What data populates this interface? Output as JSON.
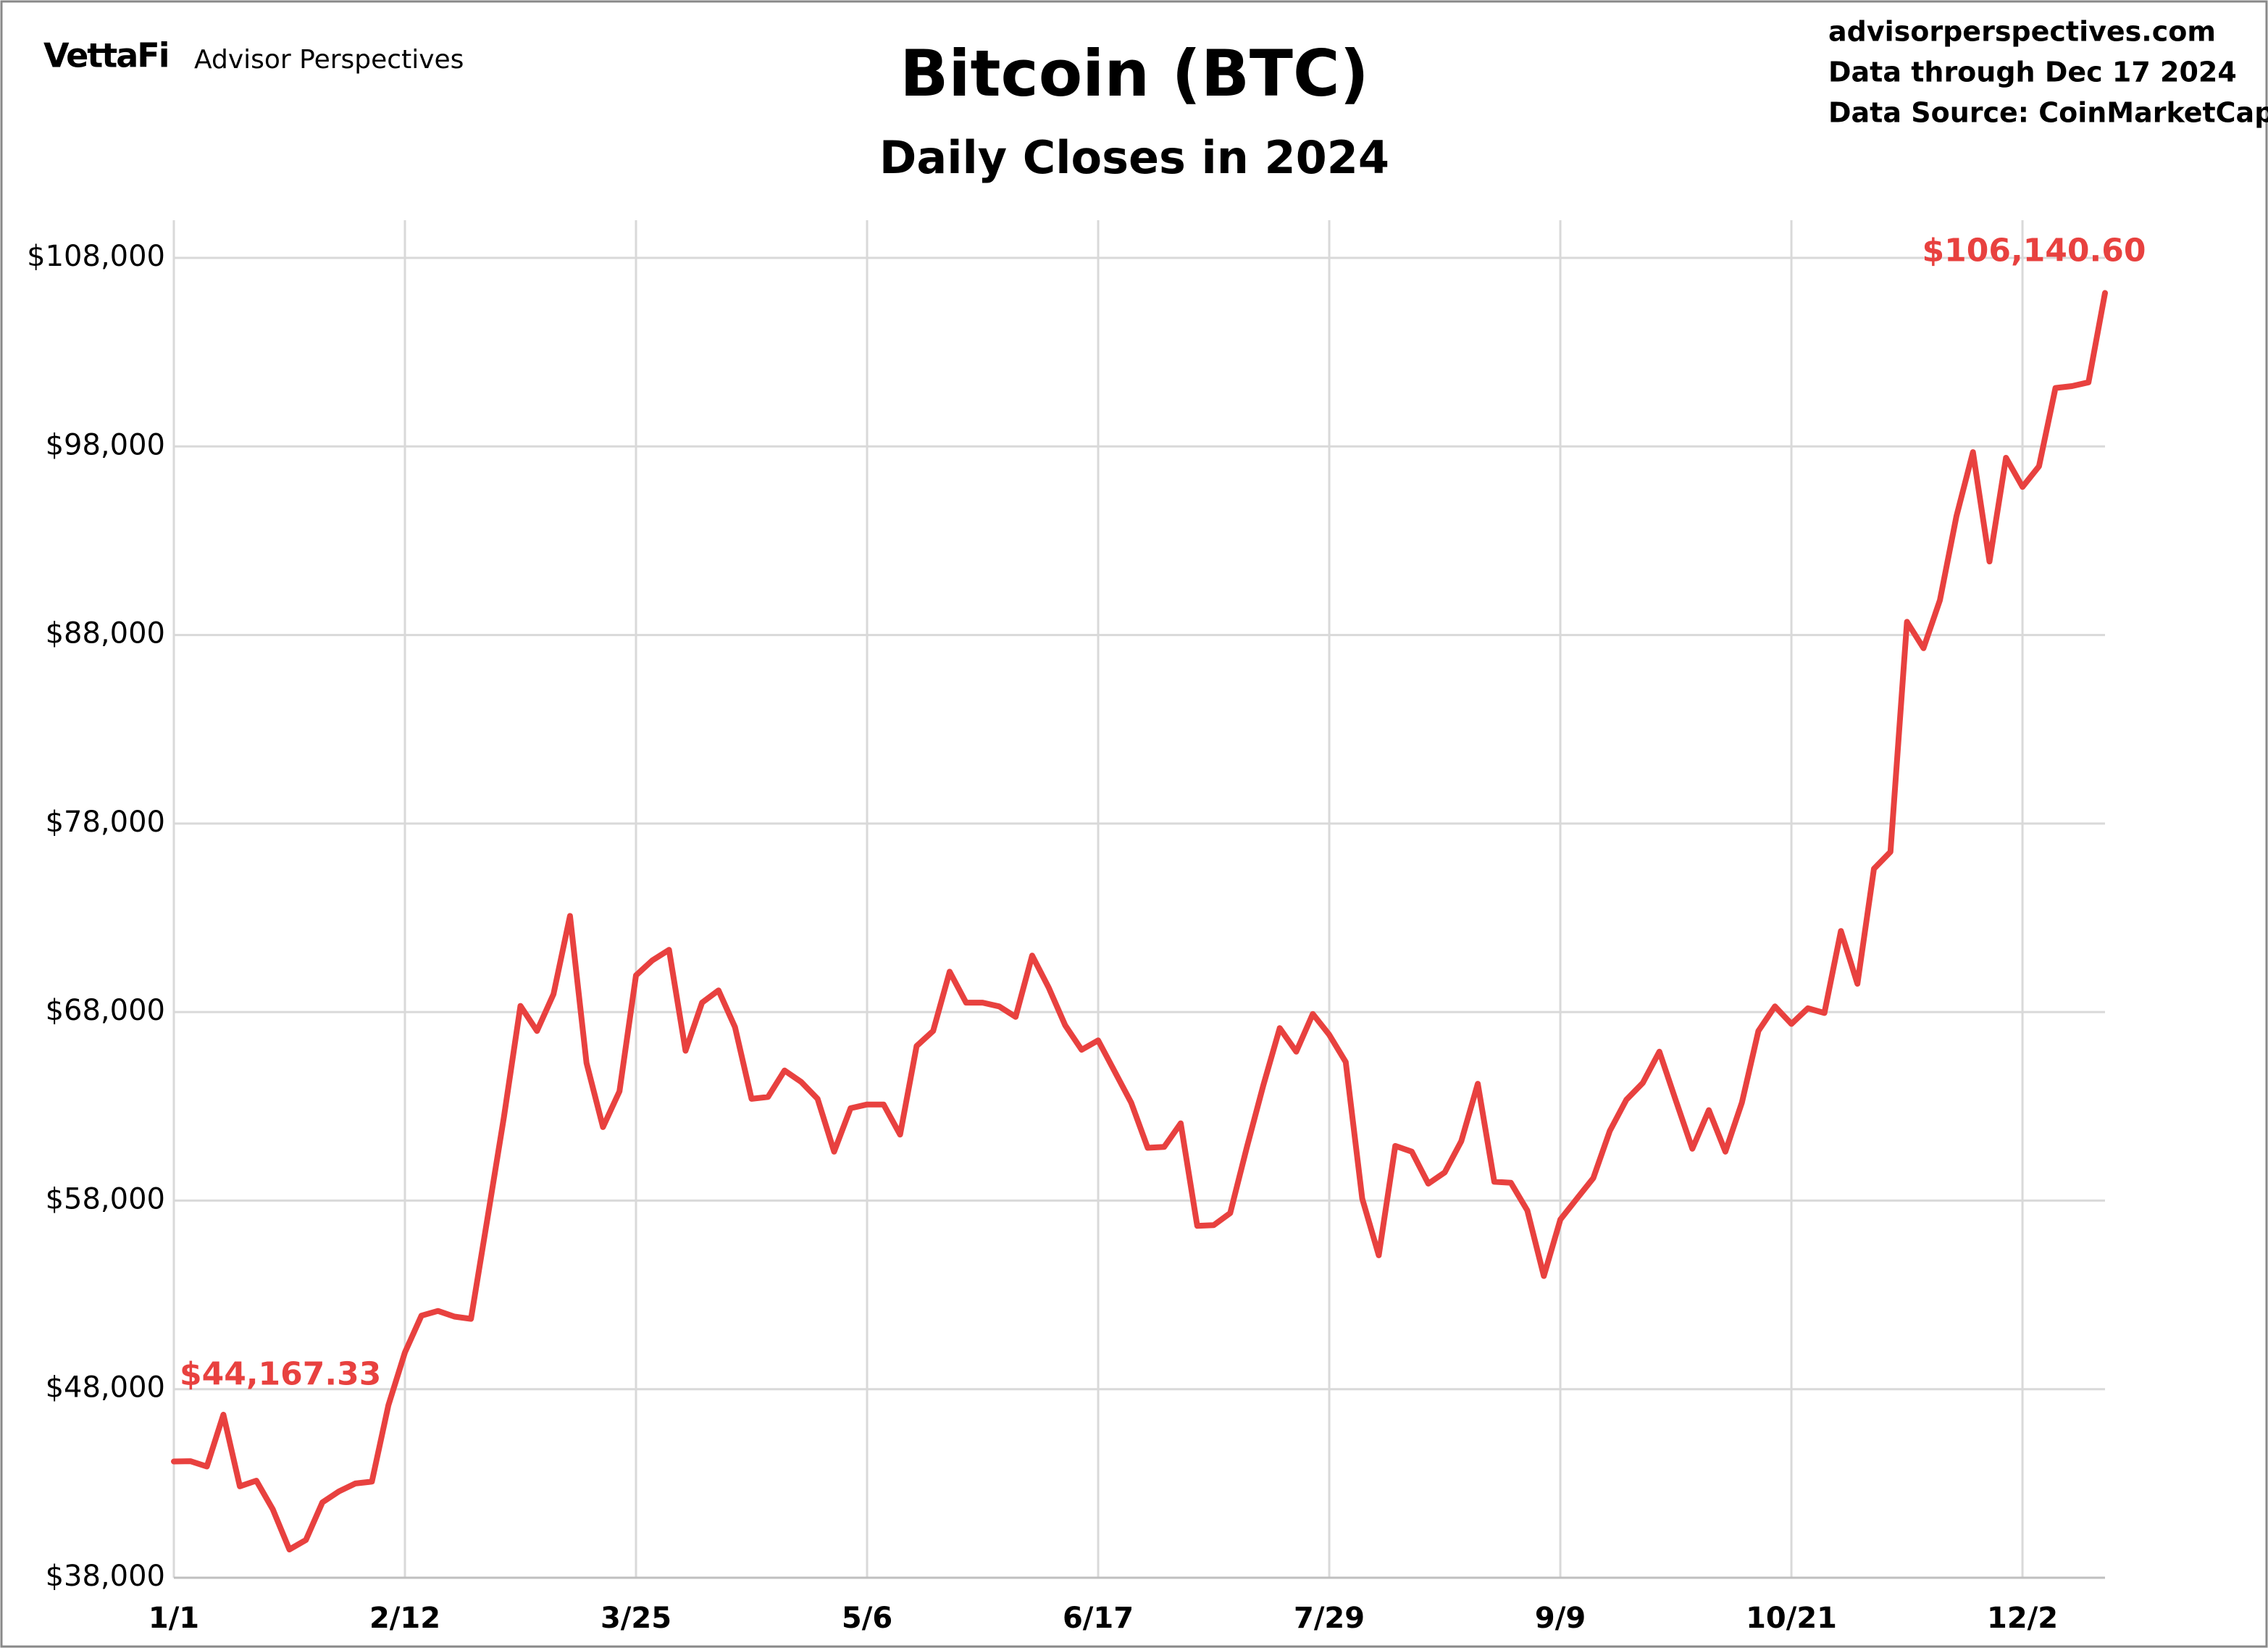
{
  "chart_data": {
    "type": "line",
    "logo": "VettaFi",
    "brand": "Advisor Perspectives",
    "title": "Bitcoin (BTC)",
    "subtitle": "Daily Closes in 2024",
    "source_lines": [
      "advisorperspectives.com",
      "Data through Dec 17 2024",
      "Data Source: CoinMarketCap"
    ],
    "categories": [
      "1/1",
      null,
      null,
      null,
      null,
      null,
      null,
      null,
      null,
      null,
      null,
      null,
      null,
      null,
      "2/12",
      null,
      null,
      null,
      null,
      null,
      null,
      null,
      null,
      null,
      null,
      null,
      null,
      null,
      "3/25",
      null,
      null,
      null,
      null,
      null,
      null,
      null,
      null,
      null,
      null,
      null,
      null,
      null,
      "5/6",
      null,
      null,
      null,
      null,
      null,
      null,
      null,
      null,
      null,
      null,
      null,
      null,
      null,
      "6/17",
      null,
      null,
      null,
      null,
      null,
      null,
      null,
      null,
      null,
      null,
      null,
      null,
      null,
      "7/29",
      null,
      null,
      null,
      null,
      null,
      null,
      null,
      null,
      null,
      null,
      null,
      null,
      null,
      "9/9",
      null,
      null,
      null,
      null,
      null,
      null,
      null,
      null,
      null,
      null,
      null,
      null,
      null,
      "10/21",
      null,
      null,
      null,
      null,
      null,
      null,
      null,
      null,
      null,
      null,
      null,
      null,
      null,
      "12/2",
      null,
      null,
      null,
      null,
      null
    ],
    "series": [
      {
        "name": "BTC",
        "color": "#e8413f",
        "values": [
          44167.33,
          44180,
          43900,
          46650,
          42850,
          43150,
          41620,
          39500,
          40000,
          42000,
          42580,
          43000,
          43100,
          47150,
          49950,
          51900,
          52150,
          51850,
          51730,
          57050,
          62440,
          68330,
          67000,
          68950,
          73100,
          65300,
          61900,
          63800,
          69950,
          70750,
          71300,
          65950,
          68500,
          69150,
          67200,
          63400,
          63500,
          64900,
          64300,
          63400,
          60600,
          62900,
          63100,
          63100,
          61500,
          66200,
          67000,
          70140,
          68500,
          68500,
          68300,
          67750,
          71000,
          69300,
          67300,
          66000,
          66500,
          64850,
          63200,
          60800,
          60850,
          62100,
          56660,
          56700,
          57340,
          60800,
          64100,
          67150,
          65900,
          67900,
          66800,
          65350,
          58100,
          55100,
          60900,
          60600,
          58900,
          59500,
          61150,
          64200,
          59000,
          58950,
          57480,
          54000,
          57000,
          58100,
          59200,
          61700,
          63350,
          64250,
          65900,
          63300,
          60750,
          62800,
          60600,
          63200,
          67000,
          68300,
          67370,
          68200,
          67950,
          72300,
          69500,
          75600,
          76500,
          88700,
          87300,
          89850,
          94300,
          97700,
          91900,
          97400,
          95850,
          96950,
          101100,
          101200,
          101400,
          106140.6
        ]
      }
    ],
    "value_labels": {
      "0": "$44,167.33",
      "117": "$106,140.60"
    },
    "ylim": [
      38000,
      108000
    ],
    "yticks": [
      {
        "value": 38000,
        "label": "$38,000"
      },
      {
        "value": 48000,
        "label": "$48,000"
      },
      {
        "value": 58000,
        "label": "$58,000"
      },
      {
        "value": 68000,
        "label": "$68,000"
      },
      {
        "value": 78000,
        "label": "$78,000"
      },
      {
        "value": 88000,
        "label": "$88,000"
      },
      {
        "value": 98000,
        "label": "$98,000"
      },
      {
        "value": 108000,
        "label": "$108,000"
      }
    ],
    "grid": true
  }
}
